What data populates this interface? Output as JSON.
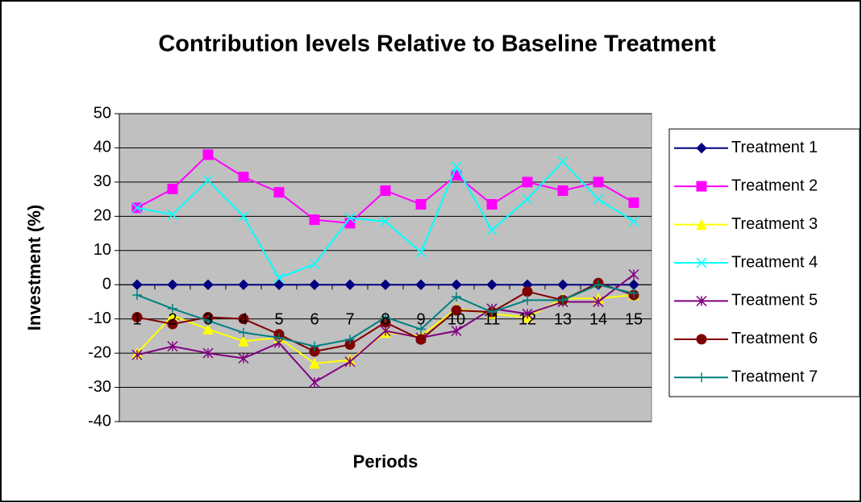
{
  "chart_data": {
    "type": "line",
    "title": "Contribution levels Relative to Baseline Treatment",
    "x_label": "Periods",
    "y_label": "Investment (%)",
    "categories": [
      "1",
      "2",
      "3",
      "4",
      "5",
      "6",
      "7",
      "8",
      "9",
      "10",
      "11",
      "12",
      "13",
      "14",
      "15"
    ],
    "ylim": [
      -40,
      50
    ],
    "yticks": [
      -40,
      -30,
      -20,
      -10,
      0,
      10,
      20,
      30,
      40,
      50
    ],
    "grid": true,
    "legend": "right",
    "series": [
      {
        "name": "Treatment 1",
        "color": "#000080",
        "values": [
          0,
          0,
          0,
          0,
          0,
          0,
          0,
          0,
          0,
          0,
          0,
          0,
          0,
          0,
          0
        ]
      },
      {
        "name": "Treatment 2",
        "color": "#ff00ff",
        "values": [
          22.5,
          28,
          38,
          31.5,
          27,
          19,
          18,
          27.5,
          23.5,
          32,
          23.5,
          30,
          27.5,
          30,
          24
        ]
      },
      {
        "name": "Treatment 3",
        "color": "#ffff00",
        "values": [
          -20,
          -9,
          -13,
          -16.5,
          -15.5,
          -23,
          -22,
          -14,
          -15,
          -7,
          -8.5,
          -9.5,
          -4,
          -4,
          -3
        ]
      },
      {
        "name": "Treatment 4",
        "color": "#00ffff",
        "values": [
          22.5,
          20.5,
          30.5,
          20,
          2,
          6,
          19.5,
          18.5,
          9.5,
          34.5,
          16,
          25,
          36,
          25,
          18.5
        ]
      },
      {
        "name": "Treatment 5",
        "color": "#800080",
        "values": [
          -20.5,
          -18,
          -20,
          -21.5,
          -17,
          -28.5,
          -22.5,
          -13.5,
          -15.5,
          -13.5,
          -7,
          -8.5,
          -5,
          -5,
          3
        ]
      },
      {
        "name": "Treatment 6",
        "color": "#800000",
        "values": [
          -9.5,
          -11.5,
          -9.5,
          -10,
          -14.5,
          -19.5,
          -17.5,
          -11,
          -16,
          -7.5,
          -8,
          -2,
          -4.5,
          0.5,
          -3
        ]
      },
      {
        "name": "Treatment 7",
        "color": "#008080",
        "values": [
          -3,
          -7,
          -10.5,
          -14,
          -15.5,
          -18,
          -16,
          -9.5,
          -13,
          -3.5,
          -8,
          -4.5,
          -4.5,
          0,
          -2.5
        ]
      }
    ]
  }
}
